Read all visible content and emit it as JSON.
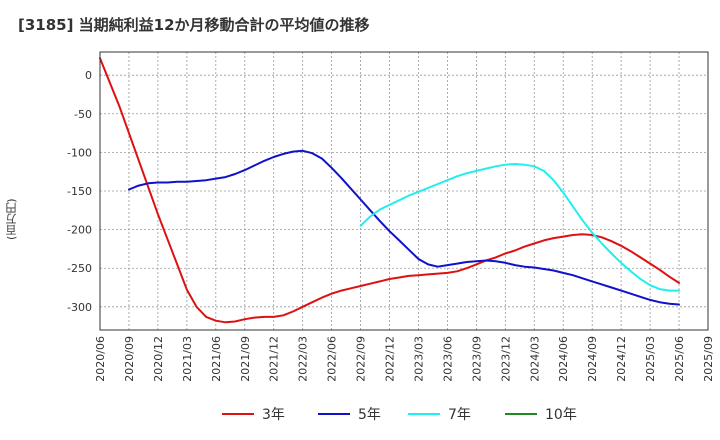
{
  "chart_data": {
    "type": "line",
    "title": "[3185]  当期純利益12か月移動合計の平均値の推移",
    "ylabel": "(百万円)",
    "xlabel": "",
    "ylim": [
      -330,
      30
    ],
    "yticks": [
      0,
      -50,
      -100,
      -150,
      -200,
      -250,
      -300
    ],
    "xlim": [
      "2020-06",
      "2025-09"
    ],
    "xticks": [
      "2020/06",
      "2020/09",
      "2020/12",
      "2021/03",
      "2021/06",
      "2021/09",
      "2021/12",
      "2022/03",
      "2022/06",
      "2022/09",
      "2022/12",
      "2023/03",
      "2023/06",
      "2023/09",
      "2023/12",
      "2024/03",
      "2024/06",
      "2024/09",
      "2024/12",
      "2025/03",
      "2025/06",
      "2025/09"
    ],
    "grid": true,
    "legend": "bottom",
    "series": [
      {
        "name": "3年",
        "color": "#dd1111",
        "points": [
          [
            "2020-06",
            22
          ],
          [
            "2020-08",
            -40
          ],
          [
            "2020-10",
            -110
          ],
          [
            "2020-12",
            -180
          ],
          [
            "2021-02",
            -245
          ],
          [
            "2021-03",
            -278
          ],
          [
            "2021-04",
            -300
          ],
          [
            "2021-05",
            -313
          ],
          [
            "2021-06",
            -318
          ],
          [
            "2021-07",
            -320
          ],
          [
            "2021-08",
            -319
          ],
          [
            "2021-09",
            -316
          ],
          [
            "2021-10",
            -314
          ],
          [
            "2021-11",
            -313
          ],
          [
            "2021-12",
            -313
          ],
          [
            "2022-01",
            -311
          ],
          [
            "2022-02",
            -306
          ],
          [
            "2022-03",
            -300
          ],
          [
            "2022-04",
            -294
          ],
          [
            "2022-05",
            -288
          ],
          [
            "2022-06",
            -283
          ],
          [
            "2022-07",
            -279
          ],
          [
            "2022-08",
            -276
          ],
          [
            "2022-09",
            -273
          ],
          [
            "2022-10",
            -270
          ],
          [
            "2022-11",
            -267
          ],
          [
            "2022-12",
            -264
          ],
          [
            "2023-01",
            -262
          ],
          [
            "2023-02",
            -260
          ],
          [
            "2023-03",
            -259
          ],
          [
            "2023-04",
            -258
          ],
          [
            "2023-05",
            -257
          ],
          [
            "2023-06",
            -256
          ],
          [
            "2023-07",
            -254
          ],
          [
            "2023-08",
            -250
          ],
          [
            "2023-09",
            -245
          ],
          [
            "2023-10",
            -240
          ],
          [
            "2023-11",
            -236
          ],
          [
            "2023-12",
            -231
          ],
          [
            "2024-01",
            -227
          ],
          [
            "2024-02",
            -222
          ],
          [
            "2024-03",
            -218
          ],
          [
            "2024-04",
            -214
          ],
          [
            "2024-05",
            -211
          ],
          [
            "2024-06",
            -209
          ],
          [
            "2024-07",
            -207
          ],
          [
            "2024-08",
            -206
          ],
          [
            "2024-09",
            -207
          ],
          [
            "2024-10",
            -210
          ],
          [
            "2024-11",
            -215
          ],
          [
            "2024-12",
            -221
          ],
          [
            "2025-01",
            -228
          ],
          [
            "2025-02",
            -236
          ],
          [
            "2025-03",
            -244
          ],
          [
            "2025-04",
            -252
          ],
          [
            "2025-05",
            -261
          ],
          [
            "2025-06",
            -269
          ]
        ]
      },
      {
        "name": "5年",
        "color": "#1111cc",
        "points": [
          [
            "2020-09",
            -148
          ],
          [
            "2020-10",
            -143
          ],
          [
            "2020-11",
            -140
          ],
          [
            "2020-12",
            -139
          ],
          [
            "2021-01",
            -139
          ],
          [
            "2021-02",
            -138
          ],
          [
            "2021-03",
            -138
          ],
          [
            "2021-04",
            -137
          ],
          [
            "2021-05",
            -136
          ],
          [
            "2021-06",
            -134
          ],
          [
            "2021-07",
            -132
          ],
          [
            "2021-08",
            -128
          ],
          [
            "2021-09",
            -123
          ],
          [
            "2021-10",
            -117
          ],
          [
            "2021-11",
            -111
          ],
          [
            "2021-12",
            -106
          ],
          [
            "2022-01",
            -102
          ],
          [
            "2022-02",
            -99
          ],
          [
            "2022-03",
            -98
          ],
          [
            "2022-04",
            -101
          ],
          [
            "2022-05",
            -108
          ],
          [
            "2022-06",
            -120
          ],
          [
            "2022-07",
            -133
          ],
          [
            "2022-08",
            -147
          ],
          [
            "2022-09",
            -161
          ],
          [
            "2022-10",
            -175
          ],
          [
            "2022-11",
            -189
          ],
          [
            "2022-12",
            -202
          ],
          [
            "2023-01",
            -214
          ],
          [
            "2023-02",
            -226
          ],
          [
            "2023-03",
            -238
          ],
          [
            "2023-04",
            -245
          ],
          [
            "2023-05",
            -248
          ],
          [
            "2023-06",
            -246
          ],
          [
            "2023-07",
            -244
          ],
          [
            "2023-08",
            -242
          ],
          [
            "2023-09",
            -241
          ],
          [
            "2023-10",
            -240
          ],
          [
            "2023-11",
            -241
          ],
          [
            "2023-12",
            -243
          ],
          [
            "2024-01",
            -246
          ],
          [
            "2024-02",
            -248
          ],
          [
            "2024-03",
            -249
          ],
          [
            "2024-04",
            -251
          ],
          [
            "2024-05",
            -253
          ],
          [
            "2024-06",
            -256
          ],
          [
            "2024-07",
            -259
          ],
          [
            "2024-08",
            -263
          ],
          [
            "2024-09",
            -267
          ],
          [
            "2024-10",
            -271
          ],
          [
            "2024-11",
            -275
          ],
          [
            "2024-12",
            -279
          ],
          [
            "2025-01",
            -283
          ],
          [
            "2025-02",
            -287
          ],
          [
            "2025-03",
            -291
          ],
          [
            "2025-04",
            -294
          ],
          [
            "2025-05",
            -296
          ],
          [
            "2025-06",
            -297
          ]
        ]
      },
      {
        "name": "7年",
        "color": "#22eeee",
        "points": [
          [
            "2022-09",
            -195
          ],
          [
            "2022-10",
            -183
          ],
          [
            "2022-11",
            -174
          ],
          [
            "2022-12",
            -168
          ],
          [
            "2023-01",
            -162
          ],
          [
            "2023-02",
            -156
          ],
          [
            "2023-03",
            -151
          ],
          [
            "2023-04",
            -146
          ],
          [
            "2023-05",
            -141
          ],
          [
            "2023-06",
            -136
          ],
          [
            "2023-07",
            -131
          ],
          [
            "2023-08",
            -127
          ],
          [
            "2023-09",
            -124
          ],
          [
            "2023-10",
            -121
          ],
          [
            "2023-11",
            -118
          ],
          [
            "2023-12",
            -116
          ],
          [
            "2024-01",
            -115
          ],
          [
            "2024-02",
            -116
          ],
          [
            "2024-03",
            -118
          ],
          [
            "2024-04",
            -124
          ],
          [
            "2024-05",
            -136
          ],
          [
            "2024-06",
            -152
          ],
          [
            "2024-07",
            -170
          ],
          [
            "2024-08",
            -188
          ],
          [
            "2024-09",
            -204
          ],
          [
            "2024-10",
            -218
          ],
          [
            "2024-11",
            -231
          ],
          [
            "2024-12",
            -243
          ],
          [
            "2025-01",
            -254
          ],
          [
            "2025-02",
            -264
          ],
          [
            "2025-03",
            -272
          ],
          [
            "2025-04",
            -277
          ],
          [
            "2025-05",
            -279
          ],
          [
            "2025-06",
            -279
          ]
        ]
      },
      {
        "name": "10年",
        "color": "#228822",
        "points": []
      }
    ]
  }
}
